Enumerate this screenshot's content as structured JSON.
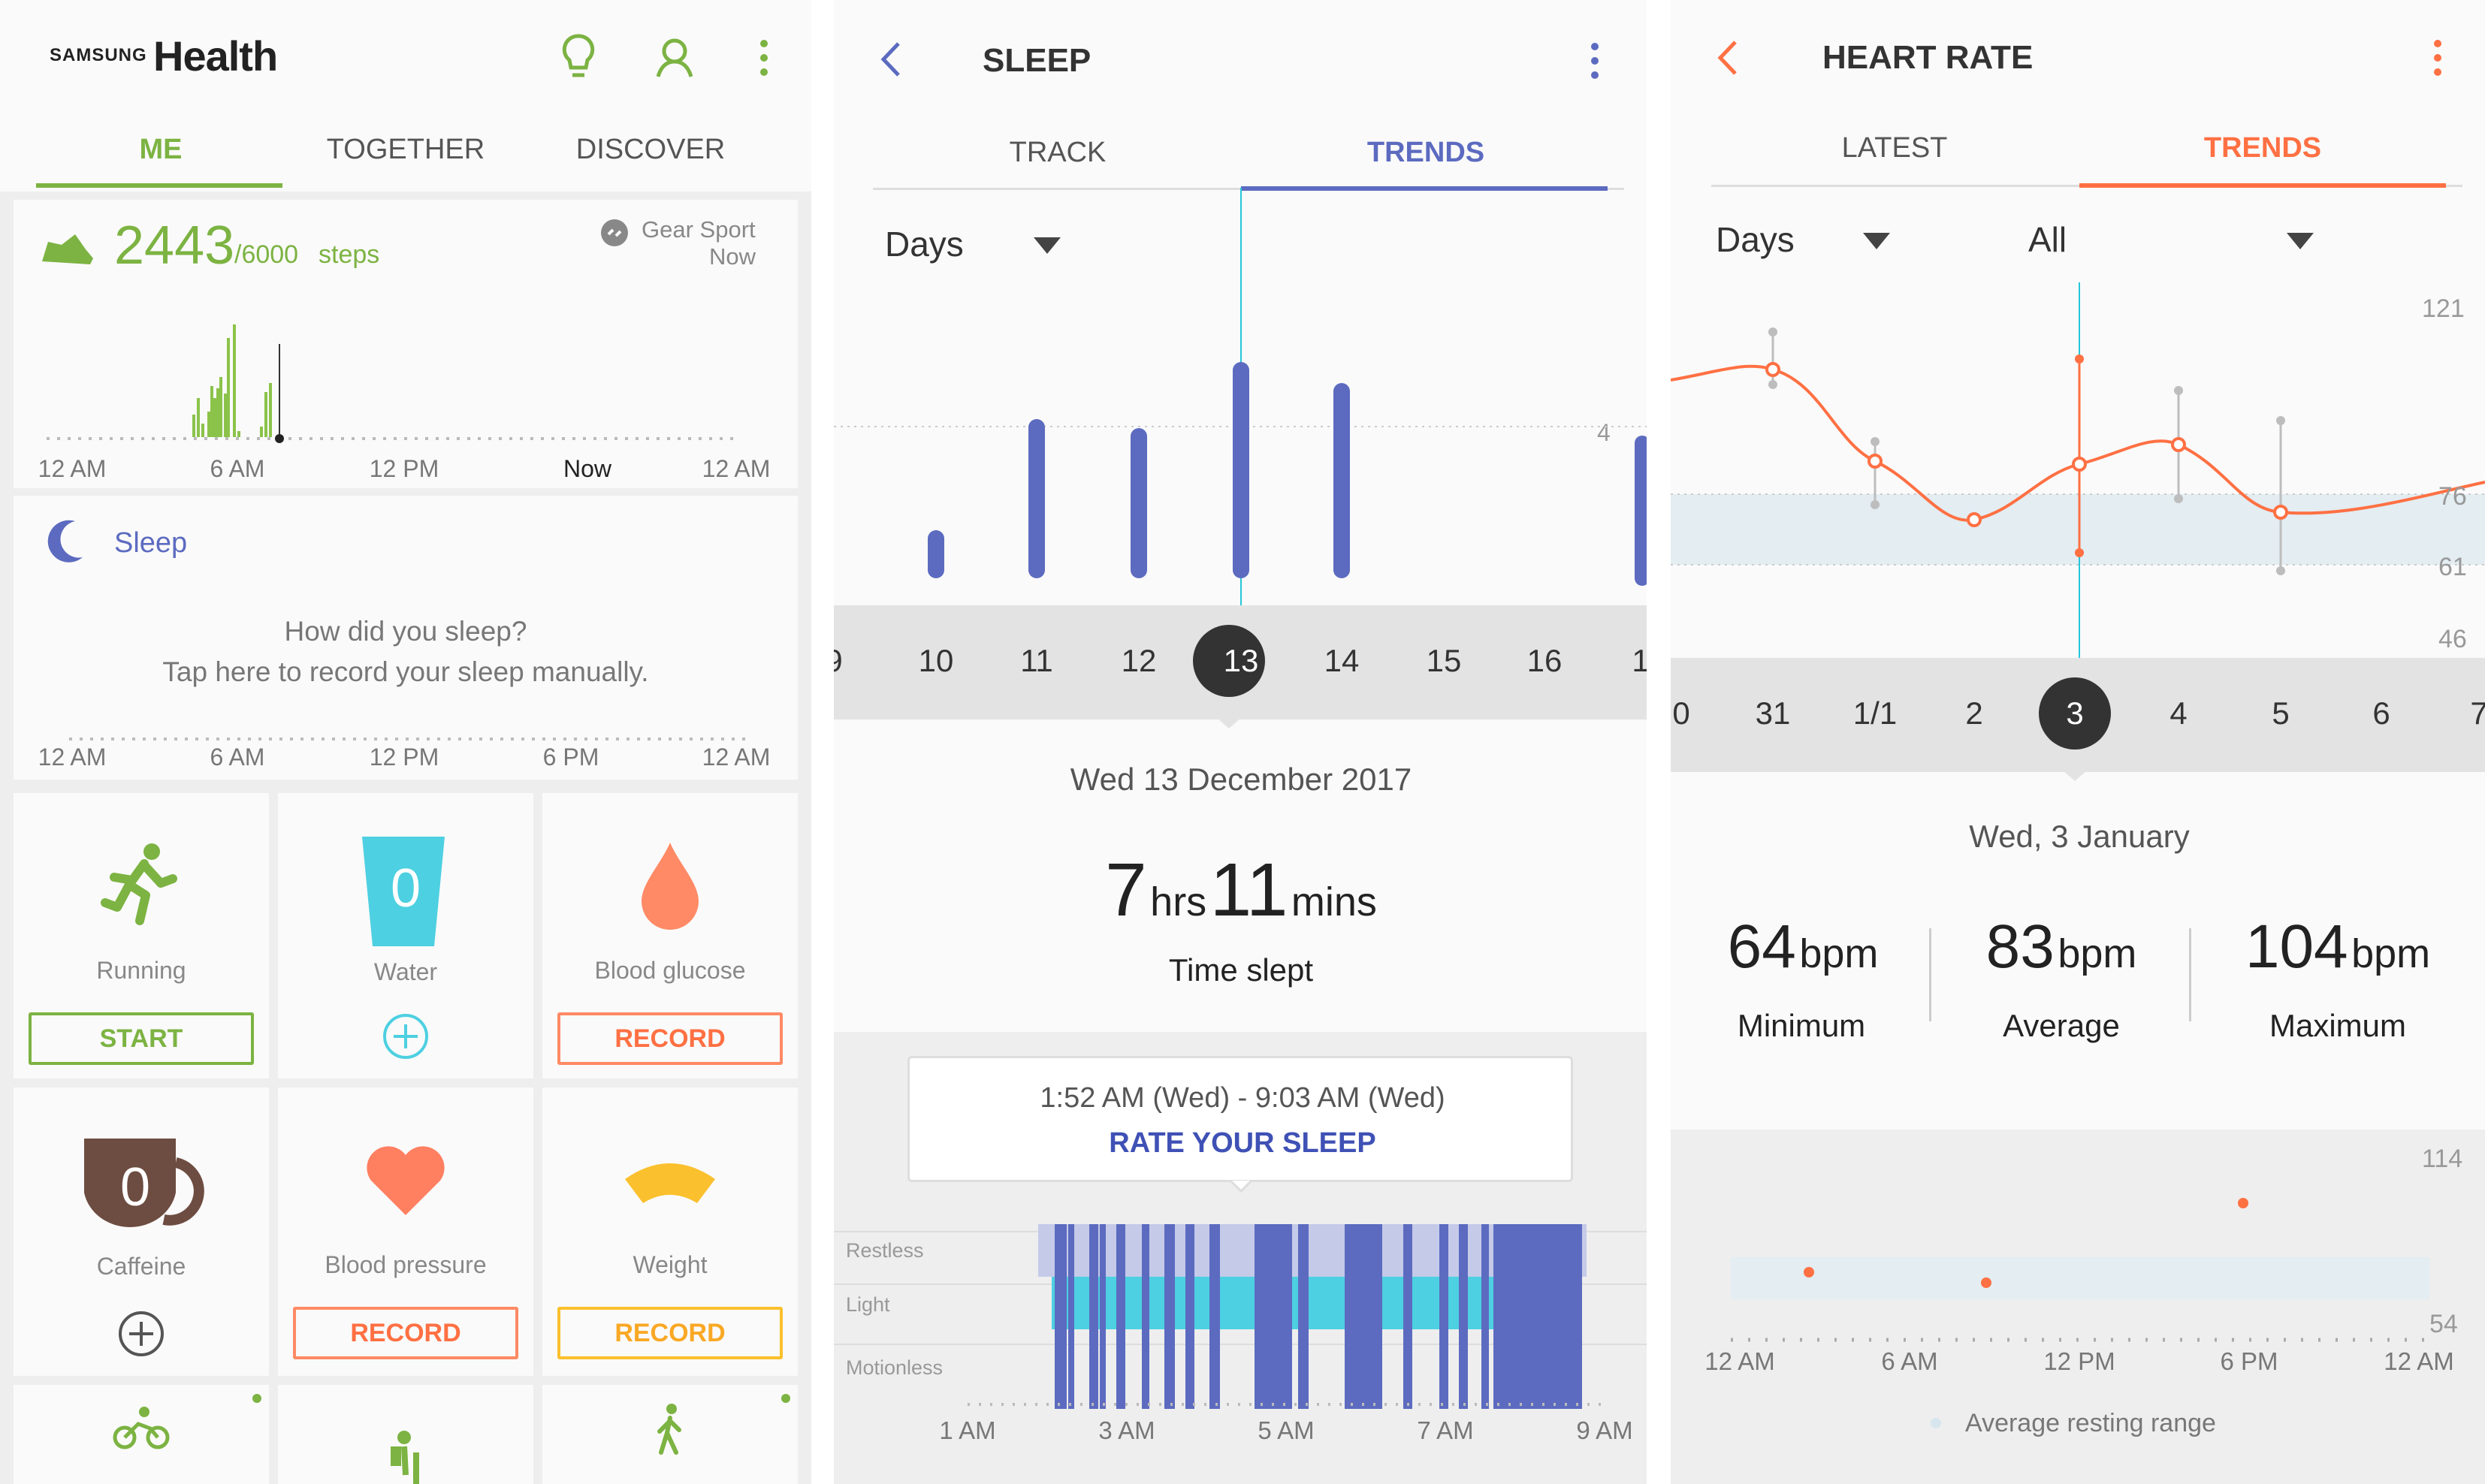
{
  "home": {
    "brand_small": "SAMSUNG",
    "brand_big": "Health",
    "tabs": [
      "ME",
      "TOGETHER",
      "DISCOVER"
    ],
    "steps": {
      "count": "2443",
      "goal": "/6000",
      "unit": "steps",
      "device": "Gear Sport",
      "device_time": "Now",
      "bars": [
        30,
        52,
        18,
        34,
        68,
        52,
        65,
        80,
        58,
        132,
        150,
        8,
        14,
        60,
        72
      ],
      "progress": 0.41
    },
    "steps_axis": [
      "12 AM",
      "6 AM",
      "12 PM",
      "Now",
      "12 AM"
    ],
    "sleep": {
      "title": "Sleep",
      "line1": "How did you sleep?",
      "line2": "Tap here to record your sleep manually."
    },
    "sleep_axis": [
      "12 AM",
      "6 AM",
      "12 PM",
      "6 PM",
      "12 AM"
    ],
    "tiles": [
      {
        "label": "Running",
        "button": "START",
        "icon": "running-icon",
        "color": "#7cb342"
      },
      {
        "label": "Water",
        "value": "0",
        "icon": "water-cup-icon",
        "color": "#4dd0e1"
      },
      {
        "label": "Blood glucose",
        "button": "RECORD",
        "icon": "blood-drop-icon",
        "color": "#ff7f61"
      },
      {
        "label": "Caffeine",
        "value": "0",
        "icon": "coffee-cup-icon",
        "color": "#6d4c41"
      },
      {
        "label": "Blood pressure",
        "button": "RECORD",
        "icon": "heart-icon",
        "color": "#ff7f61"
      },
      {
        "label": "Weight",
        "button": "RECORD",
        "icon": "weight-scale-icon",
        "color": "#fbc02d"
      }
    ]
  },
  "sleep_screen": {
    "title": "SLEEP",
    "tabs": [
      "TRACK",
      "TRENDS"
    ],
    "period": "Days",
    "y_tick": "4",
    "days": [
      "9",
      "10",
      "11",
      "12",
      "13",
      "14",
      "15",
      "16",
      "1"
    ],
    "selected": "13",
    "bars": [
      {
        "day": "10",
        "hours": 1.6
      },
      {
        "day": "11",
        "hours": 5.3
      },
      {
        "day": "12",
        "hours": 5
      },
      {
        "day": "13",
        "hours": 7.2
      },
      {
        "day": "14",
        "hours": 6.5
      }
    ],
    "date": "Wed 13 December 2017",
    "hrs": "7",
    "hrs_unit": "hrs",
    "mins": "11",
    "mins_unit": "mins",
    "caption": "Time slept",
    "range": "1:52 AM (Wed) - 9:03 AM (Wed)",
    "rate": "RATE YOUR SLEEP",
    "stages": [
      "Restless",
      "Light",
      "Motionless"
    ],
    "time_axis": [
      "1 AM",
      "3 AM",
      "5 AM",
      "7 AM",
      "9 AM"
    ]
  },
  "heart_screen": {
    "title": "HEART RATE",
    "tabs": [
      "LATEST",
      "TRENDS"
    ],
    "period": "Days",
    "filter": "All",
    "y_ticks": [
      "121",
      "76",
      "61",
      "46"
    ],
    "days": [
      "0",
      "31",
      "1/1",
      "2",
      "3",
      "4",
      "5",
      "6",
      "7"
    ],
    "selected": "3",
    "date": "Wed, 3 January",
    "stats": [
      {
        "value": "64",
        "unit": "bpm",
        "label": "Minimum"
      },
      {
        "value": "83",
        "unit": "bpm",
        "label": "Average"
      },
      {
        "value": "104",
        "unit": "bpm",
        "label": "Maximum"
      }
    ],
    "day_ticks": [
      "114",
      "54"
    ],
    "time_axis": [
      "12 AM",
      "6 AM",
      "12 PM",
      "6 PM",
      "12 AM"
    ],
    "legend": "Average resting range"
  },
  "colors": {
    "green": "#7cb342",
    "indigo": "#5c6bc0",
    "cyan": "#4dd0e1",
    "orange": "#ff7043"
  }
}
